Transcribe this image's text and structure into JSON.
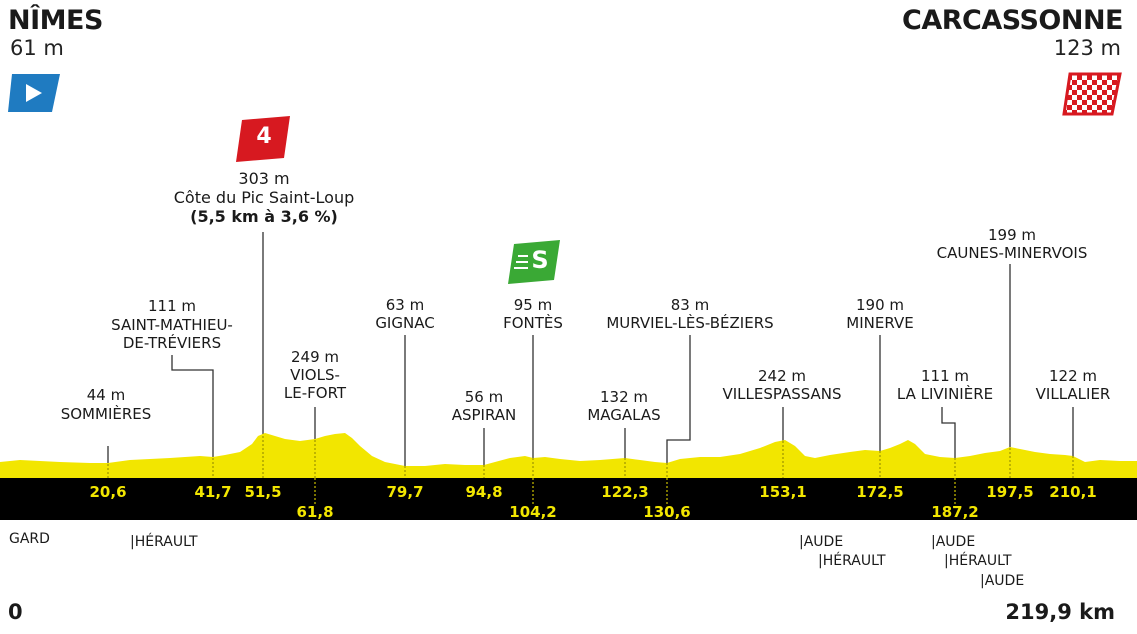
{
  "start": {
    "name": "NÎMES",
    "altitude": "61 m"
  },
  "finish": {
    "name": "CARCASSONNE",
    "altitude": "123 m"
  },
  "climb": {
    "category": "4",
    "altitude": "303 m",
    "name": "Côte du Pic Saint-Loup",
    "detail": "(5,5 km à 3,6 %)"
  },
  "sprint": {
    "label": "S"
  },
  "places": [
    {
      "alt": "44 m",
      "name": "SOMMIÈRES",
      "km": "20,6"
    },
    {
      "alt": "111 m",
      "name": "SAINT-MATHIEU-\nDE-TRÉVIERS",
      "km": "41,7"
    },
    {
      "alt": "303 m",
      "name": "",
      "km": "51,5"
    },
    {
      "alt": "249 m",
      "name": "VIOLS-\nLE-FORT",
      "km": "61,8"
    },
    {
      "alt": "63 m",
      "name": "GIGNAC",
      "km": "79,7"
    },
    {
      "alt": "56 m",
      "name": "ASPIRAN",
      "km": "94,8"
    },
    {
      "alt": "95 m",
      "name": "FONTÈS",
      "km": "104,2"
    },
    {
      "alt": "132 m",
      "name": "MAGALAS",
      "km": "122,3"
    },
    {
      "alt": "83 m",
      "name": "MURVIEL-LÈS-BÉZIERS",
      "km": "130,6"
    },
    {
      "alt": "242 m",
      "name": "VILLESPASSANS",
      "km": "153,1"
    },
    {
      "alt": "190 m",
      "name": "MINERVE",
      "km": "172,5"
    },
    {
      "alt": "111 m",
      "name": "LA LIVINIÈRE",
      "km": "187,2"
    },
    {
      "alt": "199 m",
      "name": "CAUNES-MINERVOIS",
      "km": "197,5"
    },
    {
      "alt": "122 m",
      "name": "VILLALIER",
      "km": "210,1"
    }
  ],
  "regions": {
    "gard": "GARD",
    "herault1": "|HÉRAULT",
    "aude1": "|AUDE",
    "herault2": "|HÉRAULT",
    "aude2": "|AUDE",
    "herault3": "|HÉRAULT",
    "aude3": "|AUDE"
  },
  "distance": {
    "start": "0",
    "end": "219,9 km"
  },
  "colors": {
    "profile": "#f2e600",
    "band": "#000000",
    "start_flag": "#1f7bc1",
    "climb_flag": "#d71920",
    "sprint_flag": "#3aa935",
    "finish_flag": "#d71920"
  }
}
